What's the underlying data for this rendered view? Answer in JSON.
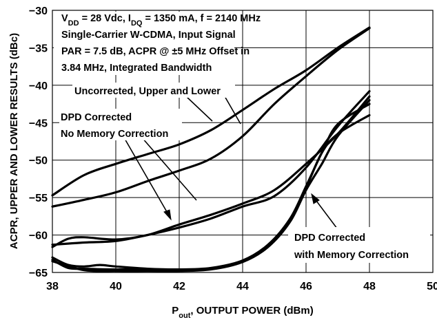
{
  "chart_data": {
    "type": "line",
    "xlabel": {
      "prefix": "P",
      "sub": "out",
      "suffix": ", OUTPUT POWER (dBm)"
    },
    "ylabel": "ACPR, UPPER AND LOWER RESULTS (dBc)",
    "xlim": [
      38,
      50
    ],
    "ylim": [
      -65,
      -30
    ],
    "x_ticks": [
      "38",
      "40",
      "42",
      "44",
      "46",
      "48",
      "50"
    ],
    "y_ticks": [
      "-30",
      "-35",
      "-40",
      "-45",
      "-50",
      "-55",
      "-60",
      "-65"
    ],
    "grid": true,
    "conditions": {
      "line1": [
        {
          "t": "V"
        },
        {
          "t": "DD",
          "sub": true
        },
        {
          "t": " = 28 Vdc, I"
        },
        {
          "t": "DQ",
          "sub": true
        },
        {
          "t": " = 1350 mA, f = 2140 MHz"
        }
      ],
      "line2": "Single-Carrier W-CDMA, Input Signal",
      "line3": "PAR = 7.5 dB, ACPR @ ±5 MHz Offset in",
      "line4": "3.84 MHz, Integrated Bandwidth"
    },
    "annotations": {
      "uncorrected": "Uncorrected, Upper and Lower",
      "dpd_no_memory_1": "DPD Corrected",
      "dpd_no_memory_2": "No Memory Correction",
      "dpd_memory_1": "DPD Corrected",
      "dpd_memory_2": "with Memory Correction"
    },
    "series": [
      {
        "group": "uncorrected",
        "x": [
          38,
          39,
          40,
          41,
          42,
          43,
          44,
          45,
          46,
          47,
          48
        ],
        "y": [
          -54.7,
          -52.0,
          -50.5,
          -49.2,
          -47.9,
          -46.0,
          -43.3,
          -40.5,
          -38.0,
          -35.0,
          -32.3
        ]
      },
      {
        "group": "uncorrected",
        "x": [
          38,
          39,
          40,
          41,
          42,
          43,
          44,
          45,
          46,
          47,
          48
        ],
        "y": [
          -56.2,
          -55.3,
          -54.3,
          -52.8,
          -51.4,
          -49.8,
          -46.8,
          -42.5,
          -38.8,
          -35.3,
          -32.4
        ]
      },
      {
        "group": "dpd_no_memory",
        "x": [
          38,
          39,
          40,
          41,
          42,
          43,
          44,
          45,
          46,
          47,
          48
        ],
        "y": [
          -61.3,
          -61.0,
          -60.8,
          -60.0,
          -59.0,
          -57.8,
          -56.2,
          -54.8,
          -51.0,
          -45.5,
          -40.8
        ]
      },
      {
        "group": "dpd_no_memory",
        "x": [
          38,
          38.5,
          39,
          40,
          41,
          42,
          43,
          44,
          45,
          46,
          47,
          48
        ],
        "y": [
          -61.6,
          -60.5,
          -60.3,
          -60.6,
          -60.0,
          -58.6,
          -57.3,
          -55.8,
          -54.0,
          -50.5,
          -46.5,
          -41.5
        ]
      },
      {
        "group": "dpd_memory",
        "x": [
          38,
          38.5,
          39,
          40,
          41,
          42,
          43,
          44,
          44.8,
          45.5,
          46,
          46.5,
          47,
          48
        ],
        "y": [
          -63.3,
          -64.4,
          -64.5,
          -64.6,
          -64.6,
          -64.7,
          -64.5,
          -63.5,
          -61.5,
          -58.0,
          -53.7,
          -49.0,
          -46.5,
          -44.0
        ]
      },
      {
        "group": "dpd_memory",
        "x": [
          38,
          38.5,
          39,
          39.5,
          40,
          41,
          42,
          43,
          44,
          44.8,
          45.5,
          46,
          46.5,
          47,
          48
        ],
        "y": [
          -63.0,
          -64.0,
          -64.2,
          -64.0,
          -64.2,
          -64.5,
          -64.6,
          -64.4,
          -63.4,
          -61.3,
          -57.8,
          -53.5,
          -49.0,
          -45.2,
          -42.5
        ]
      },
      {
        "group": "dpd_memory",
        "x": [
          38,
          39,
          40,
          41,
          42,
          43,
          44,
          44.8,
          45.5,
          46,
          46.5,
          47,
          48
        ],
        "y": [
          -63.5,
          -64.7,
          -64.8,
          -64.8,
          -64.8,
          -64.6,
          -63.6,
          -61.6,
          -58.2,
          -54.0,
          -50.5,
          -46.8,
          -42.0
        ]
      }
    ]
  }
}
